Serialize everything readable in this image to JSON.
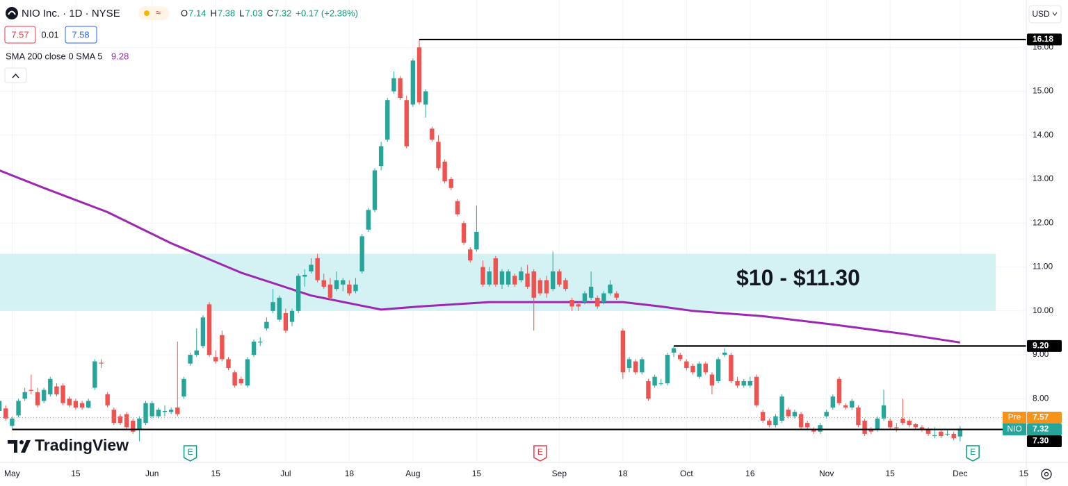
{
  "header": {
    "symbol": "NIO Inc. · 1D · NYSE",
    "ohlc": [
      {
        "label": "O",
        "value": 7.14
      },
      {
        "label": "H",
        "value": 7.38
      },
      {
        "label": "L",
        "value": 7.03
      },
      {
        "label": "C",
        "value": 7.32
      }
    ],
    "change": "+0.17 (+2.38%)",
    "quote": [
      "7.57",
      "0.01",
      "7.58"
    ],
    "currency": "USD",
    "watermark": "TradingView"
  },
  "chart_data": {
    "type": "candlestick",
    "up_color": "#26a69a",
    "down_color": "#ef5350",
    "grid": true,
    "xlim": [
      -1.9,
      159.4
    ],
    "ylim": [
      6.55,
      17.08
    ],
    "xticks": [
      {
        "value": 0,
        "label": "May"
      },
      {
        "value": 10,
        "label": "15"
      },
      {
        "value": 22,
        "label": "Jun"
      },
      {
        "value": 32,
        "label": "15"
      },
      {
        "value": 43,
        "label": "Jul"
      },
      {
        "value": 53,
        "label": "18"
      },
      {
        "value": 63,
        "label": "Aug"
      },
      {
        "value": 73,
        "label": "15"
      },
      {
        "value": 86,
        "label": "Sep"
      },
      {
        "value": 96,
        "label": "18"
      },
      {
        "value": 106,
        "label": "Oct"
      },
      {
        "value": 116,
        "label": "16"
      },
      {
        "value": 128,
        "label": "Nov"
      },
      {
        "value": 138,
        "label": "15"
      },
      {
        "value": 149,
        "label": "Dec"
      },
      {
        "value": 159,
        "label": "15"
      }
    ],
    "yticks": [
      {
        "value": 8,
        "label": "8.00"
      },
      {
        "value": 9,
        "label": "9.00"
      },
      {
        "value": 10,
        "label": "10.00"
      },
      {
        "value": 11,
        "label": "11.00"
      },
      {
        "value": 12,
        "label": "12.00"
      },
      {
        "value": 13,
        "label": "13.00"
      },
      {
        "value": 14,
        "label": "14.00"
      },
      {
        "value": 15,
        "label": "15.00"
      },
      {
        "value": 16,
        "label": "16.00"
      }
    ],
    "series": [
      {
        "name": "NIO",
        "type": "candlestick",
        "color": "#26a69a",
        "x": [
          -2,
          -1,
          0,
          1,
          2,
          3,
          4,
          5,
          6,
          7,
          8,
          9,
          10,
          11,
          12,
          13,
          14,
          15,
          16,
          17,
          18,
          19,
          20,
          21,
          22,
          23,
          24,
          25,
          26,
          27,
          28,
          29,
          30,
          31,
          32,
          33,
          34,
          35,
          36,
          37,
          38,
          39,
          40,
          41,
          42,
          43,
          44,
          45,
          46,
          47,
          48,
          49,
          50,
          51,
          52,
          53,
          54,
          55,
          56,
          57,
          58,
          59,
          60,
          61,
          62,
          63,
          64,
          65,
          66,
          67,
          68,
          69,
          70,
          71,
          72,
          73,
          74,
          75,
          76,
          77,
          78,
          79,
          80,
          81,
          82,
          83,
          84,
          85,
          86,
          87,
          88,
          89,
          90,
          91,
          92,
          93,
          94,
          95,
          96,
          97,
          98,
          99,
          100,
          101,
          102,
          103,
          104,
          105,
          106,
          107,
          108,
          109,
          110,
          111,
          112,
          113,
          114,
          115,
          116,
          117,
          118,
          119,
          120,
          121,
          122,
          123,
          124,
          125,
          126,
          127,
          128,
          129,
          130,
          131,
          132,
          133,
          134,
          135,
          136,
          137,
          138,
          139,
          140,
          141,
          142,
          143,
          144,
          145,
          146,
          147,
          148,
          149
        ],
        "open": [
          7.72,
          7.78,
          7.38,
          7.62,
          8.0,
          8.2,
          8.15,
          7.95,
          8.1,
          8.28,
          8.3,
          8.0,
          7.95,
          7.9,
          7.8,
          8.25,
          8.82,
          8.1,
          7.75,
          7.6,
          7.65,
          7.5,
          7.3,
          7.45,
          7.6,
          7.6,
          7.7,
          7.7,
          7.8,
          8.05,
          8.8,
          9.0,
          9.2,
          10.15,
          8.95,
          9.45,
          8.9,
          8.6,
          8.45,
          8.3,
          9.0,
          9.28,
          9.6,
          10.0,
          9.8,
          9.95,
          9.75,
          10.0,
          10.78,
          10.9,
          11.2,
          10.7,
          10.6,
          10.5,
          10.6,
          10.6,
          10.45,
          10.9,
          11.85,
          12.3,
          13.3,
          13.9,
          15.0,
          15.3,
          14.8,
          14.7,
          16.0,
          14.7,
          14.15,
          13.85,
          13.4,
          13.0,
          12.5,
          12.0,
          11.4,
          11.4,
          11.0,
          10.6,
          11.2,
          10.6,
          10.6,
          10.8,
          10.7,
          10.85,
          10.9,
          10.7,
          10.7,
          10.5,
          10.9,
          10.7,
          10.25,
          10.15,
          10.2,
          10.3,
          10.3,
          10.2,
          10.4,
          10.4,
          9.55,
          8.7,
          8.85,
          8.6,
          8.4,
          8.3,
          8.35,
          8.35,
          9.05,
          9.0,
          8.85,
          8.75,
          8.5,
          8.8,
          8.55,
          8.4,
          9.0,
          9.0,
          8.4,
          8.3,
          8.3,
          8.5,
          7.7,
          7.5,
          7.4,
          7.5,
          7.75,
          7.6,
          7.65,
          7.45,
          7.3,
          7.25,
          7.6,
          7.8,
          8.45,
          7.85,
          7.8,
          7.8,
          7.5,
          7.3,
          7.3,
          7.55,
          7.5,
          7.35,
          7.55,
          7.5,
          7.42,
          7.35,
          7.3,
          7.15,
          7.25,
          7.2,
          7.2,
          7.14
        ],
        "high": [
          8.0,
          7.85,
          7.6,
          8.0,
          8.25,
          8.55,
          8.25,
          8.25,
          8.5,
          8.35,
          8.35,
          8.05,
          8.0,
          7.95,
          8.0,
          8.9,
          8.9,
          8.15,
          7.8,
          7.65,
          7.7,
          7.55,
          7.6,
          7.95,
          7.95,
          7.8,
          7.85,
          7.8,
          9.3,
          8.5,
          9.05,
          9.6,
          9.9,
          10.2,
          9.1,
          9.55,
          8.95,
          8.65,
          8.5,
          8.95,
          9.35,
          9.4,
          9.85,
          10.5,
          10.35,
          10.05,
          10.05,
          10.85,
          10.95,
          11.2,
          11.3,
          10.85,
          10.75,
          10.9,
          10.75,
          10.7,
          10.75,
          11.75,
          12.35,
          13.25,
          13.85,
          14.85,
          15.45,
          15.35,
          14.9,
          15.75,
          16.18,
          15.05,
          14.2,
          14.0,
          13.45,
          13.05,
          12.55,
          12.05,
          11.45,
          12.4,
          11.15,
          11.0,
          11.25,
          10.95,
          10.95,
          10.85,
          11.0,
          11.05,
          10.95,
          10.75,
          10.8,
          11.35,
          10.95,
          10.75,
          10.3,
          10.2,
          10.45,
          10.9,
          10.35,
          10.45,
          10.7,
          10.45,
          9.6,
          8.95,
          8.9,
          8.95,
          8.45,
          8.55,
          8.45,
          9.05,
          9.2,
          9.05,
          8.9,
          8.8,
          8.85,
          8.85,
          8.6,
          8.95,
          9.15,
          9.05,
          8.5,
          8.45,
          8.5,
          8.55,
          7.75,
          7.55,
          7.65,
          8.1,
          7.8,
          7.75,
          7.7,
          7.5,
          7.35,
          7.45,
          7.75,
          8.1,
          8.5,
          7.9,
          8.0,
          7.85,
          7.55,
          7.35,
          7.6,
          8.2,
          7.55,
          7.45,
          8.0,
          7.55,
          7.45,
          7.4,
          7.35,
          7.35,
          7.3,
          7.3,
          7.25,
          7.38
        ],
        "low": [
          7.65,
          7.5,
          7.32,
          7.58,
          7.95,
          8.1,
          7.8,
          7.9,
          8.05,
          8.05,
          7.85,
          7.8,
          7.75,
          7.75,
          7.78,
          8.2,
          8.7,
          7.8,
          7.4,
          7.4,
          7.3,
          7.2,
          7.03,
          7.4,
          7.55,
          7.55,
          7.6,
          7.65,
          7.6,
          8.0,
          8.75,
          8.95,
          9.15,
          8.95,
          8.8,
          8.85,
          8.65,
          8.25,
          8.3,
          8.25,
          8.95,
          9.2,
          9.55,
          9.95,
          9.75,
          9.5,
          9.65,
          9.95,
          10.55,
          10.85,
          10.65,
          10.5,
          10.25,
          10.45,
          10.45,
          10.35,
          10.4,
          10.85,
          11.8,
          12.25,
          13.2,
          13.85,
          14.95,
          14.8,
          13.7,
          14.65,
          14.7,
          14.4,
          13.85,
          13.2,
          12.9,
          12.75,
          12.15,
          11.5,
          11.1,
          11.35,
          10.55,
          10.55,
          10.55,
          10.5,
          10.55,
          10.55,
          10.65,
          10.5,
          9.55,
          10.35,
          10.3,
          10.45,
          10.55,
          10.45,
          10.0,
          10.0,
          10.15,
          10.25,
          10.05,
          10.15,
          10.35,
          10.25,
          8.45,
          8.6,
          8.55,
          8.55,
          7.95,
          8.25,
          8.3,
          8.3,
          8.95,
          8.85,
          8.65,
          8.55,
          8.45,
          8.55,
          8.1,
          8.35,
          8.95,
          8.35,
          8.25,
          8.25,
          8.25,
          7.8,
          7.45,
          7.35,
          7.35,
          7.45,
          7.55,
          7.55,
          7.3,
          7.3,
          7.2,
          7.2,
          7.55,
          7.75,
          7.85,
          7.75,
          7.75,
          7.35,
          7.15,
          7.2,
          7.25,
          7.5,
          7.3,
          7.25,
          7.4,
          7.35,
          7.3,
          7.25,
          7.15,
          7.1,
          7.1,
          7.15,
          7.05,
          7.03
        ],
        "close": [
          7.95,
          7.55,
          7.55,
          7.95,
          8.15,
          8.18,
          7.85,
          8.2,
          8.45,
          8.1,
          7.9,
          7.85,
          7.8,
          7.8,
          7.95,
          8.85,
          8.8,
          7.85,
          7.45,
          7.45,
          7.35,
          7.25,
          7.55,
          7.9,
          7.9,
          7.75,
          7.72,
          7.75,
          7.65,
          8.45,
          9.0,
          9.1,
          9.85,
          9.0,
          8.85,
          8.9,
          8.7,
          8.3,
          8.35,
          8.9,
          9.3,
          9.3,
          9.75,
          10.2,
          10.3,
          9.55,
          10.0,
          10.8,
          10.82,
          11.05,
          10.7,
          10.55,
          10.3,
          10.7,
          10.7,
          10.4,
          10.6,
          11.7,
          12.3,
          13.2,
          13.75,
          14.8,
          15.3,
          14.85,
          13.75,
          15.7,
          14.75,
          15.0,
          13.9,
          13.25,
          12.95,
          12.8,
          12.2,
          11.55,
          11.15,
          11.8,
          10.6,
          10.9,
          10.6,
          10.9,
          10.9,
          10.6,
          10.9,
          10.55,
          10.3,
          10.4,
          10.4,
          10.9,
          10.6,
          10.5,
          10.1,
          10.1,
          10.4,
          10.55,
          10.1,
          10.4,
          10.6,
          10.3,
          8.6,
          8.9,
          8.6,
          8.9,
          8.0,
          8.5,
          8.35,
          9.0,
          9.15,
          8.9,
          8.7,
          8.6,
          8.8,
          8.6,
          8.3,
          8.9,
          9.05,
          8.4,
          8.3,
          8.4,
          8.4,
          7.85,
          7.5,
          7.4,
          7.6,
          8.05,
          7.6,
          7.7,
          7.35,
          7.35,
          7.25,
          7.4,
          7.7,
          8.05,
          7.9,
          7.8,
          7.95,
          7.4,
          7.2,
          7.25,
          7.55,
          7.85,
          7.35,
          7.33,
          7.45,
          7.4,
          7.35,
          7.3,
          7.2,
          7.17,
          7.15,
          7.2,
          7.1,
          7.32
        ]
      },
      {
        "name": "SMA 200 close 0 SMA 5",
        "type": "line",
        "color": "#9c27b0",
        "x": [
          -2,
          5,
          15,
          25,
          36,
          47,
          58,
          64,
          75,
          86,
          96,
          102,
          107,
          118,
          129,
          140,
          149
        ],
        "values": [
          13.2,
          12.8,
          12.25,
          11.54,
          10.87,
          10.35,
          10.03,
          10.1,
          10.2,
          10.2,
          10.2,
          10.1,
          10.0,
          9.88,
          9.69,
          9.48,
          9.28
        ]
      }
    ],
    "zone": {
      "from": 10,
      "to": 11.3,
      "x": [
        -1.9,
        154.6
      ],
      "label": "$10 - $11.30",
      "color": "#d4f1f4"
    },
    "levels": [
      {
        "price": 16.18,
        "from": 64
      },
      {
        "price": {
          "value": 9.2,
          "label": "9.20"
        },
        "from": 104
      },
      {
        "price": {
          "value": 7.3,
          "label": "7.30"
        },
        "from": 0
      }
    ],
    "pre": {
      "name": "Pre",
      "value": 7.57,
      "color": "#f7931a"
    },
    "earnings": [
      {
        "x": 28,
        "label": "E",
        "color": "#089981"
      },
      {
        "x": 83,
        "label": "E",
        "color": "#f23645"
      },
      {
        "x": 151,
        "label": "E",
        "color": "#089981"
      }
    ]
  }
}
